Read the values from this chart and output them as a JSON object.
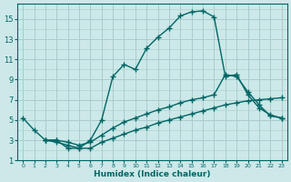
{
  "xlabel": "Humidex (Indice chaleur)",
  "bg_color": "#cce8e8",
  "grid_color": "#aacccc",
  "line_color": "#006666",
  "xlim": [
    -0.5,
    23.5
  ],
  "ylim": [
    1,
    16.5
  ],
  "xticks": [
    0,
    1,
    2,
    3,
    4,
    5,
    6,
    7,
    8,
    9,
    10,
    11,
    12,
    13,
    14,
    15,
    16,
    17,
    18,
    19,
    20,
    21,
    22,
    23
  ],
  "yticks": [
    1,
    3,
    5,
    7,
    9,
    11,
    13,
    15
  ],
  "line1_x": [
    0,
    1,
    2,
    3,
    4,
    5,
    6,
    7,
    8,
    9,
    10,
    11,
    12,
    13,
    14,
    15,
    16,
    17,
    18,
    19,
    20,
    21,
    22,
    23
  ],
  "line1_y": [
    5.2,
    4.0,
    3.0,
    3.0,
    2.2,
    2.2,
    3.0,
    5.0,
    9.3,
    10.5,
    10.0,
    12.1,
    13.2,
    14.1,
    15.3,
    15.7,
    15.8,
    15.2,
    9.3,
    9.5,
    7.5,
    6.2,
    5.5,
    5.2
  ],
  "line2_x": [
    2,
    3,
    4,
    5,
    6,
    7,
    8,
    9,
    10,
    11,
    12,
    13,
    14,
    15,
    16,
    17,
    18,
    19,
    20,
    21,
    22,
    23
  ],
  "line2_y": [
    3.0,
    3.0,
    2.8,
    2.5,
    2.8,
    3.5,
    4.2,
    4.8,
    5.2,
    5.6,
    6.0,
    6.3,
    6.7,
    7.0,
    7.2,
    7.5,
    9.5,
    9.3,
    7.8,
    6.5,
    5.4,
    5.2
  ],
  "line3_x": [
    2,
    3,
    4,
    5,
    6,
    7,
    8,
    9,
    10,
    11,
    12,
    13,
    14,
    15,
    16,
    17,
    18,
    19,
    20,
    21,
    22,
    23
  ],
  "line3_y": [
    3.0,
    2.8,
    2.5,
    2.2,
    2.2,
    2.8,
    3.2,
    3.6,
    4.0,
    4.3,
    4.7,
    5.0,
    5.3,
    5.6,
    5.9,
    6.2,
    6.5,
    6.7,
    6.9,
    7.0,
    7.1,
    7.2
  ],
  "marker": "+",
  "marker_size": 4,
  "line_width": 1.0,
  "xlabel_fontsize": 6.5,
  "tick_fontsize_x": 4.5,
  "tick_fontsize_y": 6
}
